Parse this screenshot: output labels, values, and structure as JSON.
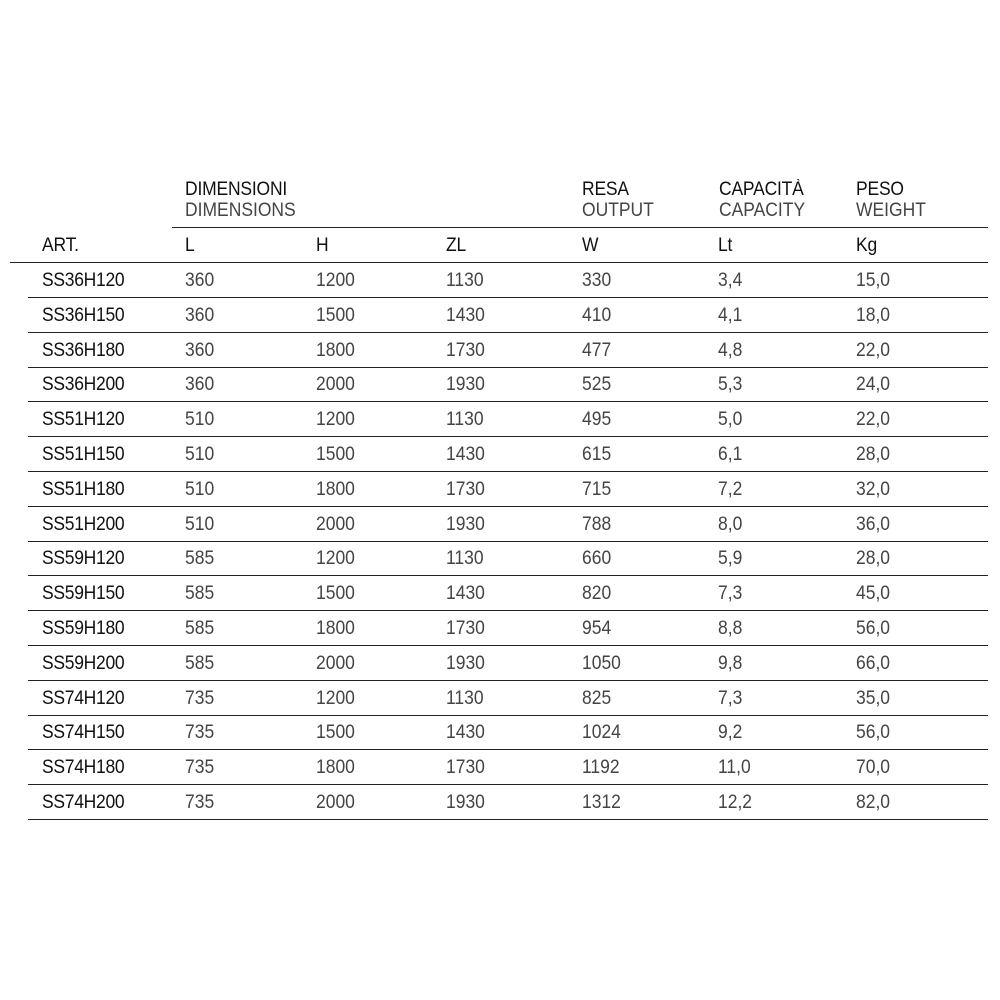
{
  "header": {
    "dimensions_it": "DIMENSIONI",
    "dimensions_en": "DIMENSIONS",
    "output_it": "RESA",
    "output_en": "OUTPUT",
    "capacity_it": "CAPACITÀ",
    "capacity_en": "CAPACITY",
    "weight_it": "PESO",
    "weight_en": "WEIGHT"
  },
  "columns": [
    "ART.",
    "L",
    "H",
    "ZL",
    "W",
    "Lt",
    "Kg"
  ],
  "rows": [
    [
      "SS36H120",
      "360",
      "1200",
      "1130",
      "330",
      "3,4",
      "15,0"
    ],
    [
      "SS36H150",
      "360",
      "1500",
      "1430",
      "410",
      "4,1",
      "18,0"
    ],
    [
      "SS36H180",
      "360",
      "1800",
      "1730",
      "477",
      "4,8",
      "22,0"
    ],
    [
      "SS36H200",
      "360",
      "2000",
      "1930",
      "525",
      "5,3",
      "24,0"
    ],
    [
      "SS51H120",
      "510",
      "1200",
      "1130",
      "495",
      "5,0",
      "22,0"
    ],
    [
      "SS51H150",
      "510",
      "1500",
      "1430",
      "615",
      "6,1",
      "28,0"
    ],
    [
      "SS51H180",
      "510",
      "1800",
      "1730",
      "715",
      "7,2",
      "32,0"
    ],
    [
      "SS51H200",
      "510",
      "2000",
      "1930",
      "788",
      "8,0",
      "36,0"
    ],
    [
      "SS59H120",
      "585",
      "1200",
      "1130",
      "660",
      "5,9",
      "28,0"
    ],
    [
      "SS59H150",
      "585",
      "1500",
      "1430",
      "820",
      "7,3",
      "45,0"
    ],
    [
      "SS59H180",
      "585",
      "1800",
      "1730",
      "954",
      "8,8",
      "56,0"
    ],
    [
      "SS59H200",
      "585",
      "2000",
      "1930",
      "1050",
      "9,8",
      "66,0"
    ],
    [
      "SS74H120",
      "735",
      "1200",
      "1130",
      "825",
      "7,3",
      "35,0"
    ],
    [
      "SS74H150",
      "735",
      "1500",
      "1430",
      "1024",
      "9,2",
      "56,0"
    ],
    [
      "SS74H180",
      "735",
      "1800",
      "1730",
      "1192",
      "11,0",
      "70,0"
    ],
    [
      "SS74H200",
      "735",
      "2000",
      "1930",
      "1312",
      "12,2",
      "82,0"
    ]
  ]
}
